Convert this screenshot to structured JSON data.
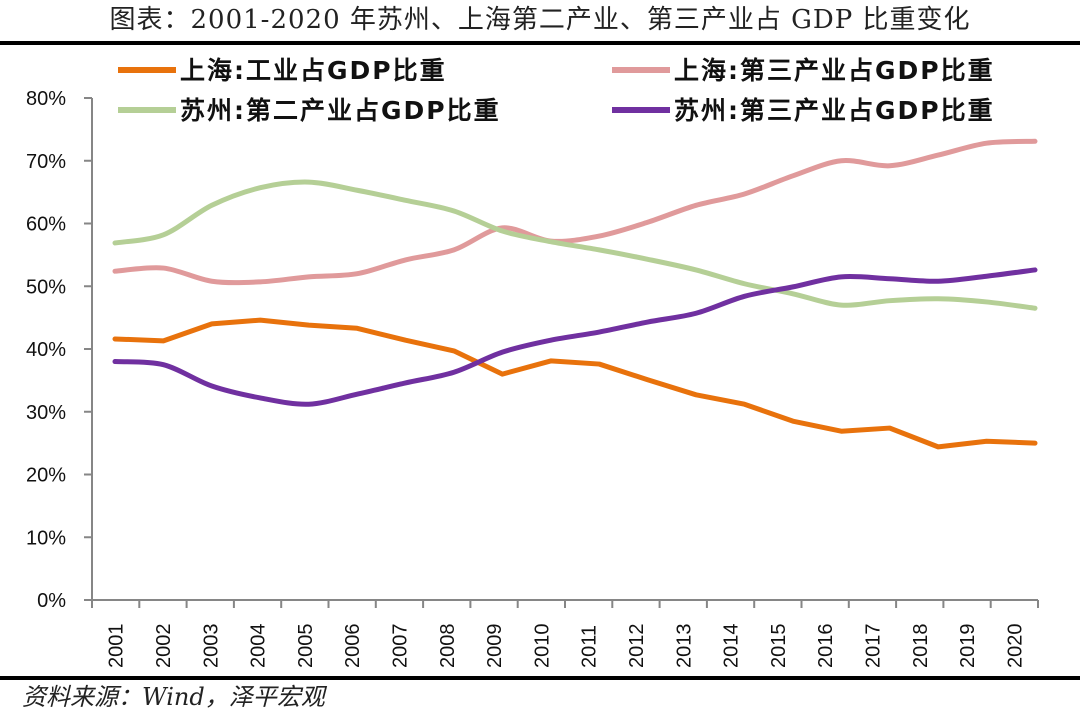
{
  "title": "图表：2001-2020 年苏州、上海第二产业、第三产业占 GDP 比重变化",
  "source": "资料来源：Wind，泽平宏观",
  "chart_data": {
    "type": "line",
    "title": "图表：2001-2020 年苏州、上海第二产业、第三产业占 GDP 比重变化",
    "xlabel": "",
    "ylabel": "",
    "ylim": [
      0,
      80
    ],
    "y_ticks": [
      "0%",
      "10%",
      "20%",
      "30%",
      "40%",
      "50%",
      "60%",
      "70%",
      "80%"
    ],
    "y_tick_values": [
      0,
      10,
      20,
      30,
      40,
      50,
      60,
      70,
      80
    ],
    "x": [
      "2001",
      "2002",
      "2003",
      "2004",
      "2005",
      "2006",
      "2007",
      "2008",
      "2009",
      "2010",
      "2011",
      "2012",
      "2013",
      "2014",
      "2015",
      "2016",
      "2017",
      "2018",
      "2019",
      "2020"
    ],
    "grid": false,
    "legend_position": "top",
    "unit": "%",
    "series": [
      {
        "name": "上海:工业占GDP比重",
        "color": "#E8720C",
        "smooth": false,
        "values": [
          41.6,
          41.3,
          44.0,
          44.6,
          43.8,
          43.3,
          41.4,
          39.7,
          36.0,
          38.1,
          37.6,
          35.1,
          32.7,
          31.2,
          28.5,
          26.9,
          27.4,
          24.4,
          25.3,
          25.0
        ]
      },
      {
        "name": "上海:第三产业占GDP比重",
        "color": "#E09A9B",
        "smooth": true,
        "values": [
          52.4,
          52.9,
          50.8,
          50.7,
          51.5,
          52.0,
          54.2,
          55.8,
          59.3,
          57.2,
          58.0,
          60.2,
          62.9,
          64.7,
          67.6,
          70.0,
          69.2,
          70.9,
          72.8,
          73.1
        ]
      },
      {
        "name": "苏州:第二产业占GDP比重",
        "color": "#B5CF96",
        "smooth": true,
        "values": [
          56.9,
          58.2,
          62.9,
          65.7,
          66.6,
          65.3,
          63.7,
          62.0,
          58.8,
          57.1,
          55.8,
          54.3,
          52.6,
          50.4,
          48.8,
          47.0,
          47.7,
          48.0,
          47.5,
          46.5
        ]
      },
      {
        "name": "苏州:第三产业占GDP比重",
        "color": "#7030A0",
        "smooth": true,
        "values": [
          38.0,
          37.5,
          34.1,
          32.2,
          31.2,
          32.8,
          34.6,
          36.3,
          39.5,
          41.4,
          42.7,
          44.3,
          45.7,
          48.4,
          49.9,
          51.5,
          51.2,
          50.8,
          51.6,
          52.6
        ]
      }
    ]
  }
}
